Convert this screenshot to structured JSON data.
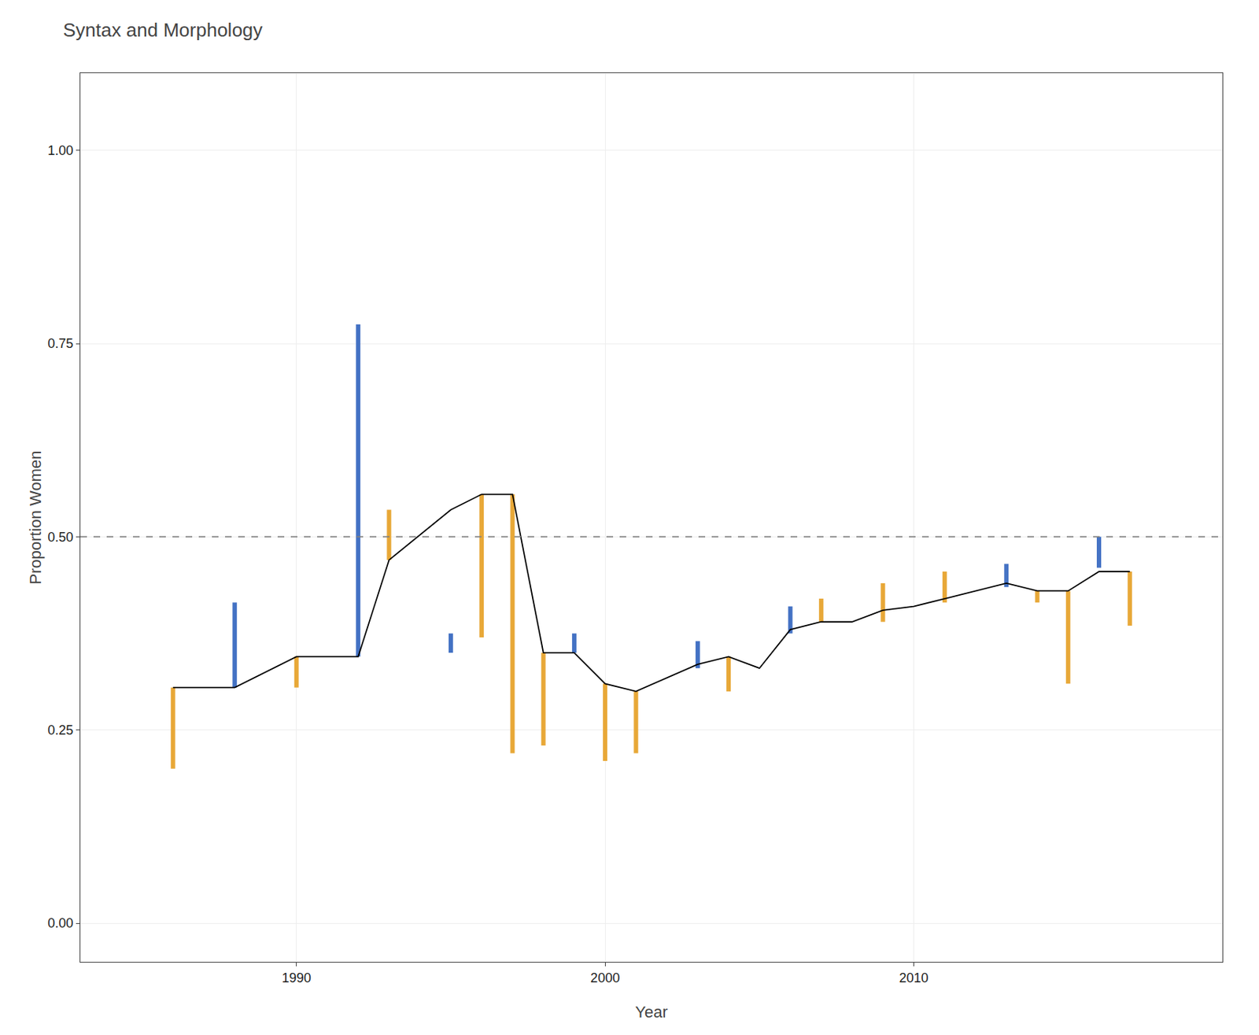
{
  "chart_data": {
    "type": "line",
    "title": "Syntax and Morphology",
    "xlabel": "Year",
    "ylabel": "Proportion Women",
    "xlim": [
      1983,
      2020
    ],
    "xticks": [
      1990,
      2000,
      2010
    ],
    "ylim": [
      -0.05,
      1.1
    ],
    "yticks": [
      {
        "value": 0.0,
        "label": "0.00"
      },
      0.25,
      {
        "value": 0.5,
        "label": "0.50"
      },
      0.75,
      {
        "value": 1.0,
        "label": "1.00"
      }
    ],
    "grid": true,
    "series": [
      {
        "type": "hline",
        "color": "gray",
        "line_style": "dashed",
        "y": 0.5
      },
      {
        "type": "range",
        "color": "#E8A838",
        "x": [
          1986,
          1990,
          1993,
          1996,
          1997,
          1998,
          2000,
          2001,
          2004,
          2007,
          2009,
          2011,
          2014,
          2015,
          2017
        ],
        "low": [
          0.2,
          0.305,
          0.47,
          0.37,
          0.22,
          0.23,
          0.21,
          0.22,
          0.3,
          0.39,
          0.39,
          0.415,
          0.415,
          0.31,
          0.385
        ],
        "high": [
          0.305,
          0.345,
          0.535,
          0.555,
          0.555,
          0.35,
          0.31,
          0.3,
          0.345,
          0.42,
          0.44,
          0.455,
          0.43,
          0.43,
          0.455
        ]
      },
      {
        "type": "range",
        "color": "#4472C4",
        "x": [
          1988,
          1992,
          1995,
          1999,
          2003,
          2006,
          2013,
          2016
        ],
        "low": [
          0.305,
          0.345,
          0.35,
          0.35,
          0.33,
          0.375,
          0.435,
          0.46
        ],
        "high": [
          0.415,
          0.775,
          0.375,
          0.375,
          0.365,
          0.41,
          0.465,
          0.5
        ]
      },
      {
        "type": "line",
        "color": "black",
        "line_style": "solid",
        "x": [
          1986,
          1988,
          1990,
          1992,
          1993,
          1995,
          1996,
          1997,
          1998,
          1999,
          2000,
          2001,
          2003,
          2004,
          2005,
          2006,
          2007,
          2008,
          2009,
          2010,
          2011,
          2012,
          2013,
          2014,
          2015,
          2016,
          2017
        ],
        "values": [
          0.305,
          0.305,
          0.345,
          0.345,
          0.47,
          0.535,
          0.555,
          0.555,
          0.35,
          0.35,
          0.31,
          0.3,
          0.335,
          0.345,
          0.33,
          0.38,
          0.39,
          0.39,
          0.405,
          0.41,
          0.42,
          0.43,
          0.44,
          0.43,
          0.43,
          0.455,
          0.455
        ]
      }
    ]
  }
}
